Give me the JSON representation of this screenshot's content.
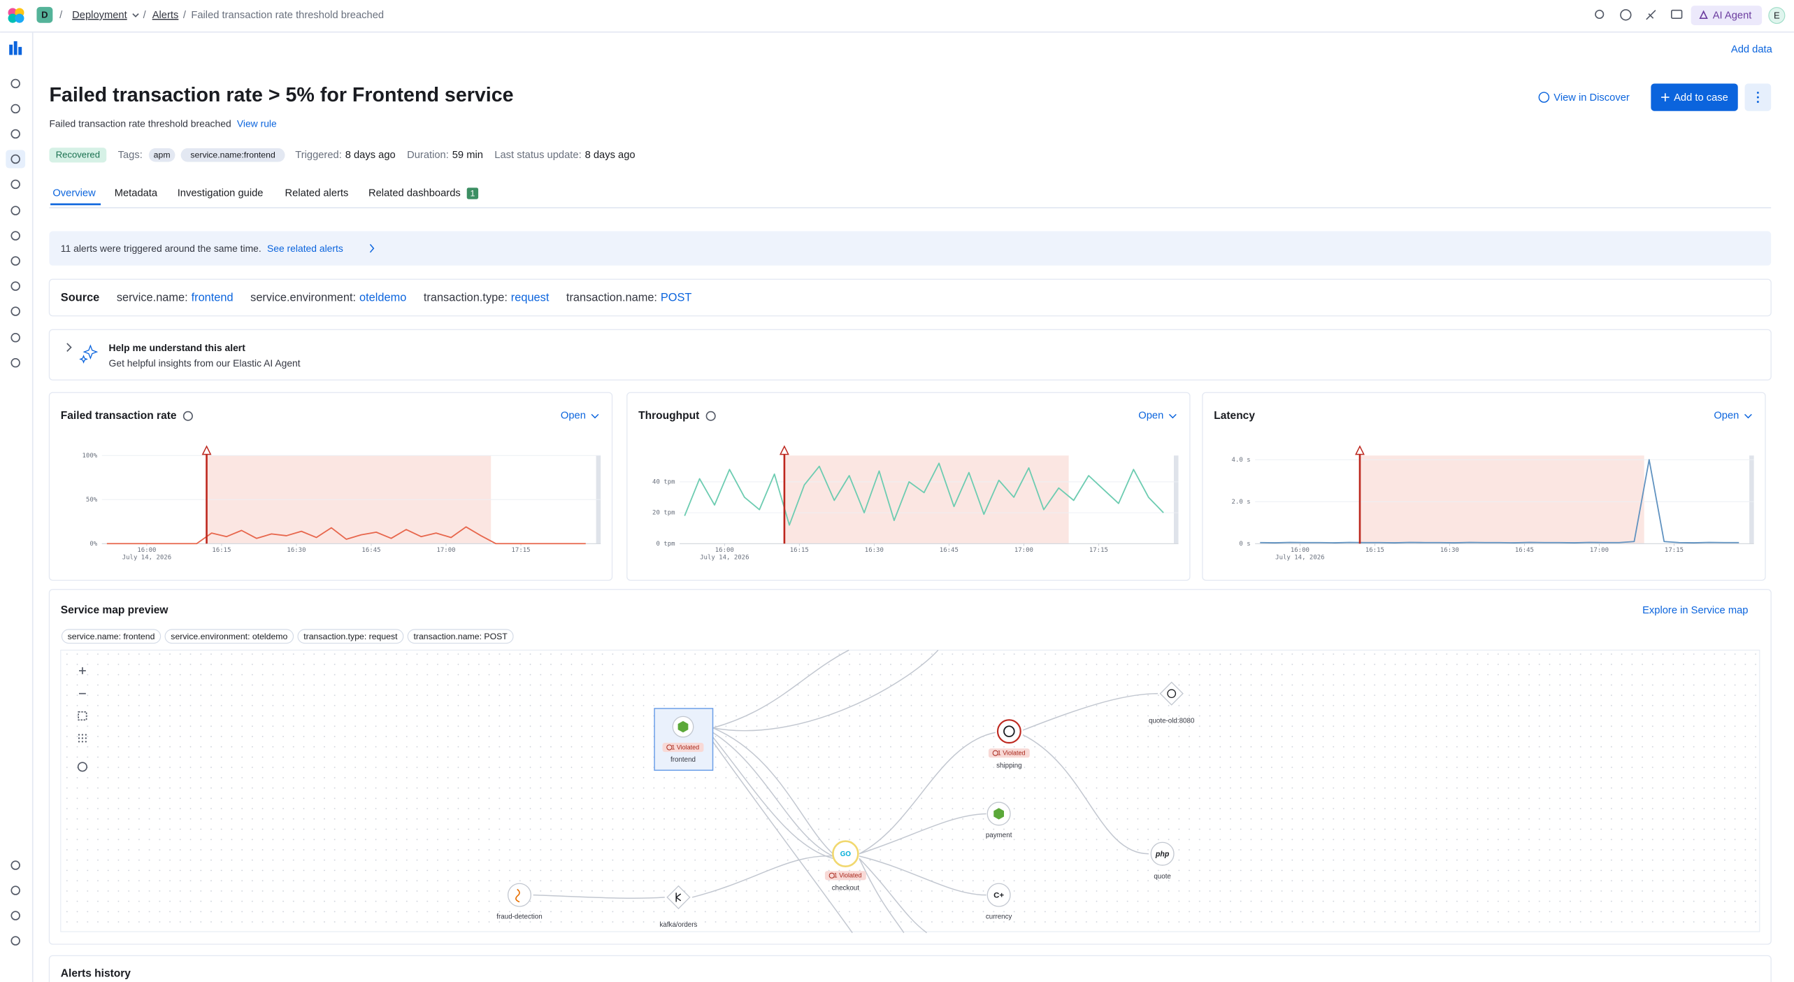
{
  "breadcrumbs": [
    "Deployment",
    "Alerts",
    "Failed transaction rate threshold breached"
  ],
  "workspace_initial": "D",
  "ai_agent": "AI Agent",
  "user_initial": "E",
  "add_data": "Add data",
  "alert": {
    "title": "Failed transaction rate > 5% for Frontend service",
    "subtitle": "Failed transaction rate threshold breached",
    "view_rule": "View rule",
    "status": "Recovered",
    "tags_label": "Tags:",
    "tags": [
      "apm",
      "service.name:frontend"
    ],
    "meta": [
      {
        "label": "Triggered:",
        "value": "8 days ago"
      },
      {
        "label": "Duration:",
        "value": "59 min"
      },
      {
        "label": "Last status update:",
        "value": "8 days ago"
      }
    ]
  },
  "buttons": {
    "view_in_discover": "View in Discover",
    "add_to_case": "Add to case"
  },
  "tabs": [
    "Overview",
    "Metadata",
    "Investigation guide",
    "Related alerts",
    "Related dashboards"
  ],
  "related_dashboards_count": 1,
  "callout": {
    "text": "11 alerts were triggered around the same time.",
    "link": "See related alerts"
  },
  "source": {
    "label": "Source",
    "fields": [
      {
        "key": "service.name:",
        "value": "frontend"
      },
      {
        "key": "service.environment:",
        "value": "oteldemo"
      },
      {
        "key": "transaction.type:",
        "value": "request"
      },
      {
        "key": "transaction.name:",
        "value": "POST"
      }
    ]
  },
  "ai_insight": {
    "title": "Help me understand this alert",
    "subtitle": "Get helpful insights from our Elastic AI Agent"
  },
  "charts": [
    {
      "title": "Failed transaction rate",
      "open": "Open",
      "color": "#e7664c",
      "ylim": [
        0,
        100
      ],
      "yticks": [
        {
          "value": 0,
          "label": "0%"
        },
        {
          "value": 50,
          "label": "50%"
        },
        {
          "value": 100,
          "label": "100%"
        }
      ],
      "xlim": [
        951,
        1051
      ],
      "xticks": [
        {
          "value": 960,
          "label": "16:00"
        },
        {
          "value": 975,
          "label": "16:15"
        },
        {
          "value": 990,
          "label": "16:30"
        },
        {
          "value": 1005,
          "label": "16:45"
        },
        {
          "value": 1020,
          "label": "17:00"
        },
        {
          "value": 1035,
          "label": "17:15"
        }
      ],
      "date_label": "July 14, 2026",
      "alert_start": 972,
      "alert_end": 1029,
      "x": [
        952,
        955,
        958,
        961,
        964,
        967,
        970,
        973,
        976,
        979,
        982,
        985,
        988,
        991,
        994,
        997,
        1000,
        1003,
        1006,
        1009,
        1012,
        1015,
        1018,
        1021,
        1024,
        1027,
        1030,
        1033,
        1036,
        1039,
        1042,
        1045,
        1048
      ],
      "values": [
        0,
        0,
        0,
        0,
        0,
        0,
        0,
        12,
        8,
        15,
        6,
        11,
        9,
        14,
        7,
        18,
        5,
        10,
        13,
        6,
        16,
        8,
        12,
        7,
        19,
        9,
        0,
        0,
        0,
        0,
        0,
        0,
        0
      ]
    },
    {
      "title": "Throughput",
      "open": "Open",
      "color": "#6dccb1",
      "ylim": [
        0,
        57
      ],
      "yticks": [
        {
          "value": 0,
          "label": "0 tpm"
        },
        {
          "value": 20,
          "label": "20 tpm"
        },
        {
          "value": 40,
          "label": "40 tpm"
        }
      ],
      "xlim": [
        951,
        1051
      ],
      "xticks": [
        {
          "value": 960,
          "label": "16:00"
        },
        {
          "value": 975,
          "label": "16:15"
        },
        {
          "value": 990,
          "label": "16:30"
        },
        {
          "value": 1005,
          "label": "16:45"
        },
        {
          "value": 1020,
          "label": "17:00"
        },
        {
          "value": 1035,
          "label": "17:15"
        }
      ],
      "date_label": "July 14, 2026",
      "alert_start": 972,
      "alert_end": 1029,
      "x": [
        952,
        955,
        958,
        961,
        964,
        967,
        970,
        973,
        976,
        979,
        982,
        985,
        988,
        991,
        994,
        997,
        1000,
        1003,
        1006,
        1009,
        1012,
        1015,
        1018,
        1021,
        1024,
        1027,
        1030,
        1033,
        1036,
        1039,
        1042,
        1045,
        1048
      ],
      "values": [
        18,
        42,
        25,
        48,
        30,
        22,
        45,
        12,
        38,
        50,
        28,
        44,
        20,
        47,
        15,
        40,
        33,
        52,
        24,
        46,
        19,
        41,
        30,
        49,
        22,
        36,
        28,
        44,
        35,
        26,
        48,
        30,
        20
      ]
    },
    {
      "title": "Latency",
      "open": "Open",
      "color": "#6092c0",
      "ylim": [
        0,
        4.2
      ],
      "yticks": [
        {
          "value": 0,
          "label": "0 s"
        },
        {
          "value": 2,
          "label": "2.0 s"
        },
        {
          "value": 4,
          "label": "4.0 s"
        }
      ],
      "xlim": [
        951,
        1051
      ],
      "xticks": [
        {
          "value": 960,
          "label": "16:00"
        },
        {
          "value": 975,
          "label": "16:15"
        },
        {
          "value": 990,
          "label": "16:30"
        },
        {
          "value": 1005,
          "label": "16:45"
        },
        {
          "value": 1020,
          "label": "17:00"
        },
        {
          "value": 1035,
          "label": "17:15"
        }
      ],
      "date_label": "July 14, 2026",
      "alert_start": 972,
      "alert_end": 1029,
      "x": [
        952,
        955,
        958,
        961,
        964,
        967,
        970,
        973,
        976,
        979,
        982,
        985,
        988,
        991,
        994,
        997,
        1000,
        1003,
        1006,
        1009,
        1012,
        1015,
        1018,
        1021,
        1024,
        1027,
        1030,
        1033,
        1036,
        1039,
        1042,
        1045,
        1048
      ],
      "values": [
        0.05,
        0.04,
        0.06,
        0.05,
        0.05,
        0.04,
        0.06,
        0.05,
        0.05,
        0.04,
        0.06,
        0.05,
        0.05,
        0.04,
        0.06,
        0.05,
        0.05,
        0.04,
        0.06,
        0.05,
        0.05,
        0.04,
        0.06,
        0.05,
        0.05,
        0.1,
        4.0,
        0.1,
        0.05,
        0.04,
        0.06,
        0.05,
        0.05
      ]
    }
  ],
  "service_map": {
    "title": "Service map preview",
    "explore": "Explore in Service map",
    "filters": [
      "service.name: frontend",
      "service.environment: oteldemo",
      "transaction.type: request",
      "transaction.name: POST"
    ],
    "violation": "1 Violated",
    "nodes": [
      "frontend",
      "shipping",
      "quote-old:8080",
      "payment",
      "checkout",
      "currency",
      "quote",
      "fraud-detection",
      "kafka/orders"
    ]
  },
  "alerts_history": {
    "title": "Alerts history"
  }
}
